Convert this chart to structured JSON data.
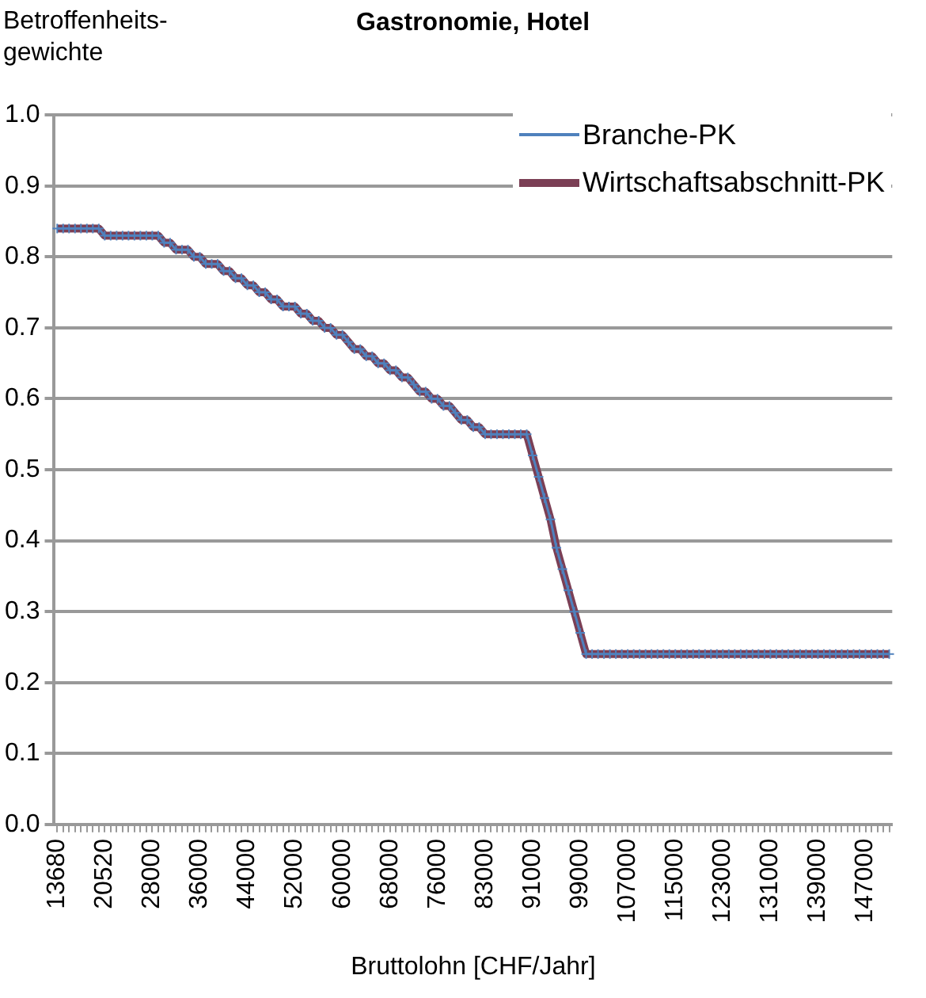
{
  "chart_data": {
    "type": "line",
    "title": "Gastronomie, Hotel",
    "ylabel": "Betroffenheits-gewichte",
    "xlabel": "Bruttolohn [CHF/Jahr]",
    "categories": [
      "13680",
      null,
      null,
      null,
      null,
      null,
      null,
      null,
      "20520",
      null,
      null,
      null,
      null,
      null,
      null,
      null,
      "28000",
      null,
      null,
      null,
      null,
      null,
      null,
      null,
      "36000",
      null,
      null,
      null,
      null,
      null,
      null,
      null,
      "44000",
      null,
      null,
      null,
      null,
      null,
      null,
      null,
      "52000",
      null,
      null,
      null,
      null,
      null,
      null,
      null,
      "60000",
      null,
      null,
      null,
      null,
      null,
      null,
      null,
      "68000",
      null,
      null,
      null,
      null,
      null,
      null,
      null,
      "76000",
      null,
      null,
      null,
      null,
      null,
      null,
      null,
      "83000",
      null,
      null,
      null,
      null,
      null,
      null,
      null,
      "91000",
      null,
      null,
      null,
      null,
      null,
      null,
      null,
      "99000",
      null,
      null,
      null,
      null,
      null,
      null,
      null,
      "107000",
      null,
      null,
      null,
      null,
      null,
      null,
      null,
      "115000",
      null,
      null,
      null,
      null,
      null,
      null,
      null,
      "123000",
      null,
      null,
      null,
      null,
      null,
      null,
      null,
      "131000",
      null,
      null,
      null,
      null,
      null,
      null,
      null,
      "139000",
      null,
      null,
      null,
      null,
      null,
      null,
      null,
      "147000",
      null,
      null,
      null,
      null
    ],
    "series": [
      {
        "name": "Branche-PK",
        "color": "#4f81bd",
        "marker": "cross",
        "values": [
          0.84,
          0.84,
          0.84,
          0.84,
          0.84,
          0.84,
          0.84,
          0.84,
          0.83,
          0.83,
          0.83,
          0.83,
          0.83,
          0.83,
          0.83,
          0.83,
          0.83,
          0.83,
          0.82,
          0.82,
          0.81,
          0.81,
          0.81,
          0.8,
          0.8,
          0.79,
          0.79,
          0.79,
          0.78,
          0.78,
          0.77,
          0.77,
          0.76,
          0.76,
          0.75,
          0.75,
          0.74,
          0.74,
          0.73,
          0.73,
          0.73,
          0.72,
          0.72,
          0.71,
          0.71,
          0.7,
          0.7,
          0.69,
          0.69,
          0.68,
          0.67,
          0.67,
          0.66,
          0.66,
          0.65,
          0.65,
          0.64,
          0.64,
          0.63,
          0.63,
          0.62,
          0.61,
          0.61,
          0.6,
          0.6,
          0.59,
          0.59,
          0.58,
          0.57,
          0.57,
          0.56,
          0.56,
          0.55,
          0.55,
          0.55,
          0.55,
          0.55,
          0.55,
          0.55,
          0.55,
          0.52,
          0.49,
          0.46,
          0.43,
          0.39,
          0.36,
          0.33,
          0.3,
          0.27,
          0.24,
          0.24,
          0.24,
          0.24,
          0.24,
          0.24,
          0.24,
          0.24,
          0.24,
          0.24,
          0.24,
          0.24,
          0.24,
          0.24,
          0.24,
          0.24,
          0.24,
          0.24,
          0.24,
          0.24,
          0.24,
          0.24,
          0.24,
          0.24,
          0.24,
          0.24,
          0.24,
          0.24,
          0.24,
          0.24,
          0.24,
          0.24,
          0.24,
          0.24,
          0.24,
          0.24,
          0.24,
          0.24,
          0.24,
          0.24,
          0.24,
          0.24,
          0.24,
          0.24,
          0.24,
          0.24,
          0.24,
          0.24,
          0.24,
          0.24,
          0.24,
          0.24
        ]
      },
      {
        "name": "Wirtschaftsabschnitt-PK",
        "color": "#7b3f55",
        "marker": "none",
        "values": [
          0.84,
          0.84,
          0.84,
          0.84,
          0.84,
          0.84,
          0.84,
          0.84,
          0.83,
          0.83,
          0.83,
          0.83,
          0.83,
          0.83,
          0.83,
          0.83,
          0.83,
          0.83,
          0.82,
          0.82,
          0.81,
          0.81,
          0.81,
          0.8,
          0.8,
          0.79,
          0.79,
          0.79,
          0.78,
          0.78,
          0.77,
          0.77,
          0.76,
          0.76,
          0.75,
          0.75,
          0.74,
          0.74,
          0.73,
          0.73,
          0.73,
          0.72,
          0.72,
          0.71,
          0.71,
          0.7,
          0.7,
          0.69,
          0.69,
          0.68,
          0.67,
          0.67,
          0.66,
          0.66,
          0.65,
          0.65,
          0.64,
          0.64,
          0.63,
          0.63,
          0.62,
          0.61,
          0.61,
          0.6,
          0.6,
          0.59,
          0.59,
          0.58,
          0.57,
          0.57,
          0.56,
          0.56,
          0.55,
          0.55,
          0.55,
          0.55,
          0.55,
          0.55,
          0.55,
          0.55,
          0.52,
          0.49,
          0.46,
          0.43,
          0.39,
          0.36,
          0.33,
          0.3,
          0.27,
          0.24,
          0.24,
          0.24,
          0.24,
          0.24,
          0.24,
          0.24,
          0.24,
          0.24,
          0.24,
          0.24,
          0.24,
          0.24,
          0.24,
          0.24,
          0.24,
          0.24,
          0.24,
          0.24,
          0.24,
          0.24,
          0.24,
          0.24,
          0.24,
          0.24,
          0.24,
          0.24,
          0.24,
          0.24,
          0.24,
          0.24,
          0.24,
          0.24,
          0.24,
          0.24,
          0.24,
          0.24,
          0.24,
          0.24,
          0.24,
          0.24,
          0.24,
          0.24,
          0.24,
          0.24,
          0.24,
          0.24,
          0.24,
          0.24,
          0.24,
          0.24,
          0.24
        ]
      }
    ],
    "ylim": [
      0,
      1
    ],
    "yticks": [
      {
        "value": 0,
        "label": "0.0"
      },
      {
        "value": 0.1,
        "label": "0.1"
      },
      {
        "value": 0.2,
        "label": "0.2"
      },
      {
        "value": 0.3,
        "label": "0.3"
      },
      {
        "value": 0.4,
        "label": "0.4"
      },
      {
        "value": 0.5,
        "label": "0.5"
      },
      {
        "value": 0.6,
        "label": "0.6"
      },
      {
        "value": 0.7,
        "label": "0.7"
      },
      {
        "value": 0.8,
        "label": "0.8"
      },
      {
        "value": 0.9,
        "label": "0.9"
      },
      {
        "value": 1,
        "label": "1.0"
      }
    ],
    "grid": "y",
    "legend": "top right"
  }
}
